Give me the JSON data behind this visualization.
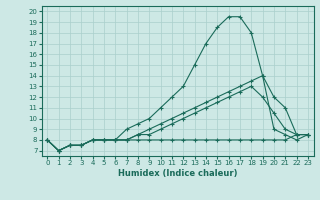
{
  "xlabel": "Humidex (Indice chaleur)",
  "ylabel": "",
  "xlim": [
    -0.5,
    23.5
  ],
  "ylim": [
    6.5,
    20.5
  ],
  "xticks": [
    0,
    1,
    2,
    3,
    4,
    5,
    6,
    7,
    8,
    9,
    10,
    11,
    12,
    13,
    14,
    15,
    16,
    17,
    18,
    19,
    20,
    21,
    22,
    23
  ],
  "yticks": [
    7,
    8,
    9,
    10,
    11,
    12,
    13,
    14,
    15,
    16,
    17,
    18,
    19,
    20
  ],
  "bg_color": "#cde8e5",
  "line_color": "#1a6b5a",
  "grid_color": "#aacfcc",
  "lines": [
    {
      "x": [
        0,
        1,
        2,
        3,
        4,
        5,
        6,
        7,
        8,
        9,
        10,
        11,
        12,
        13,
        14,
        15,
        16,
        17,
        18,
        19,
        20,
        21,
        22,
        23
      ],
      "y": [
        8,
        7,
        7.5,
        7.5,
        8,
        8,
        8,
        9,
        9.5,
        10,
        11,
        12,
        13,
        15,
        17,
        18.5,
        19.5,
        19.5,
        18,
        14,
        9,
        8.5,
        8,
        8.5
      ]
    },
    {
      "x": [
        0,
        1,
        2,
        3,
        4,
        5,
        6,
        7,
        8,
        9,
        10,
        11,
        12,
        13,
        14,
        15,
        16,
        17,
        18,
        19,
        20,
        21,
        22,
        23
      ],
      "y": [
        8,
        7,
        7.5,
        7.5,
        8,
        8,
        8,
        8,
        8.5,
        9,
        9.5,
        10,
        10.5,
        11,
        11.5,
        12,
        12.5,
        13,
        13.5,
        14,
        12,
        11,
        8.5,
        8.5
      ]
    },
    {
      "x": [
        0,
        1,
        2,
        3,
        4,
        5,
        6,
        7,
        8,
        9,
        10,
        11,
        12,
        13,
        14,
        15,
        16,
        17,
        18,
        19,
        20,
        21,
        22,
        23
      ],
      "y": [
        8,
        7,
        7.5,
        7.5,
        8,
        8,
        8,
        8,
        8.5,
        8.5,
        9,
        9.5,
        10,
        10.5,
        11,
        11.5,
        12,
        12.5,
        13,
        12,
        10.5,
        9,
        8.5,
        8.5
      ]
    },
    {
      "x": [
        0,
        1,
        2,
        3,
        4,
        5,
        6,
        7,
        8,
        9,
        10,
        11,
        12,
        13,
        14,
        15,
        16,
        17,
        18,
        19,
        20,
        21,
        22,
        23
      ],
      "y": [
        8,
        7,
        7.5,
        7.5,
        8,
        8,
        8,
        8,
        8,
        8,
        8,
        8,
        8,
        8,
        8,
        8,
        8,
        8,
        8,
        8,
        8,
        8,
        8.5,
        8.5
      ]
    }
  ]
}
